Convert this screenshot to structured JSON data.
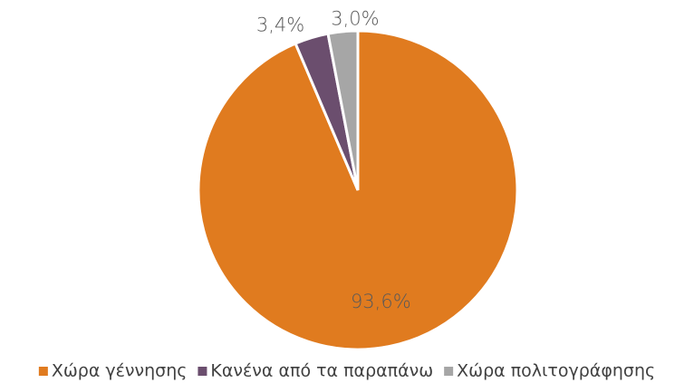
{
  "chart_data": {
    "type": "pie",
    "categories": [
      "Χώρα γέννησης",
      "Κανένα από τα παραπάνω",
      "Χώρα πολιτογράφησης"
    ],
    "values": [
      93.6,
      3.4,
      3.0
    ],
    "value_labels": [
      "93,6%",
      "3,4%",
      "3,0%"
    ],
    "colors": [
      "#e07b1f",
      "#6b4e6e",
      "#a6a6a6"
    ],
    "legend": "bottom"
  }
}
